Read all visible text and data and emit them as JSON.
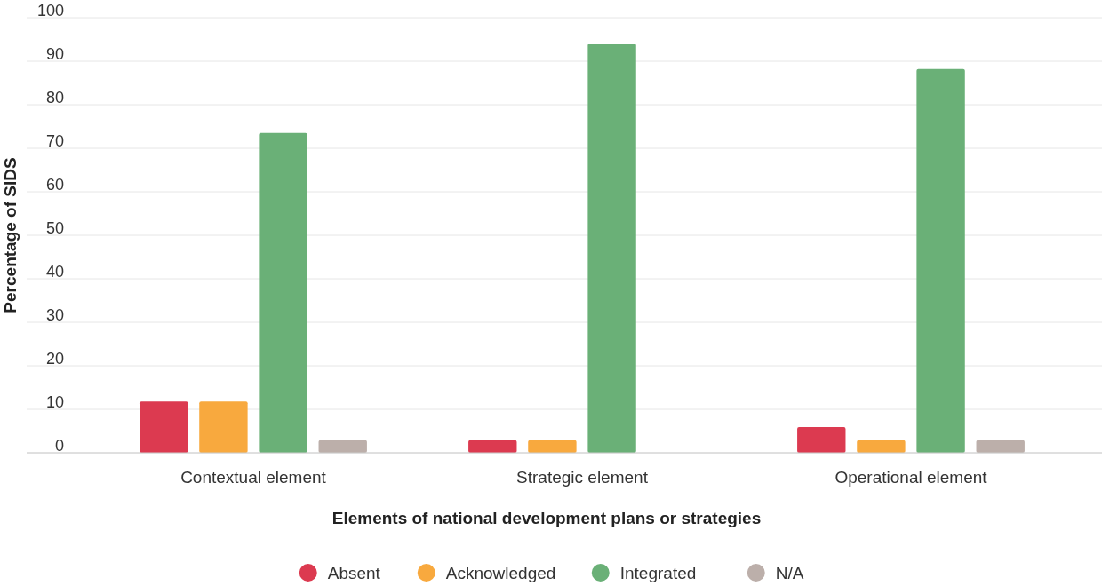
{
  "chart_data": {
    "type": "bar",
    "xlabel": "Elements of national development plans or strategies",
    "ylabel": "Percentage of SIDS",
    "categories": [
      "Contextual element",
      "Strategic element",
      "Operational element"
    ],
    "series": [
      {
        "name": "Absent",
        "color": "#dc3a50",
        "values": [
          11.8,
          2.9,
          5.9
        ]
      },
      {
        "name": "Acknowledged",
        "color": "#f8a93e",
        "values": [
          11.8,
          2.9,
          2.9
        ]
      },
      {
        "name": "Integrated",
        "color": "#6ab077",
        "values": [
          73.5,
          94.1,
          88.2
        ]
      },
      {
        "name": "N/A",
        "color": "#bcafaa",
        "values": [
          2.9,
          0,
          2.9
        ]
      }
    ],
    "ylim": [
      0,
      100
    ],
    "yticks": [
      0,
      10,
      20,
      30,
      40,
      50,
      60,
      70,
      80,
      90,
      100
    ],
    "grid": "y",
    "legend": "bottom"
  }
}
